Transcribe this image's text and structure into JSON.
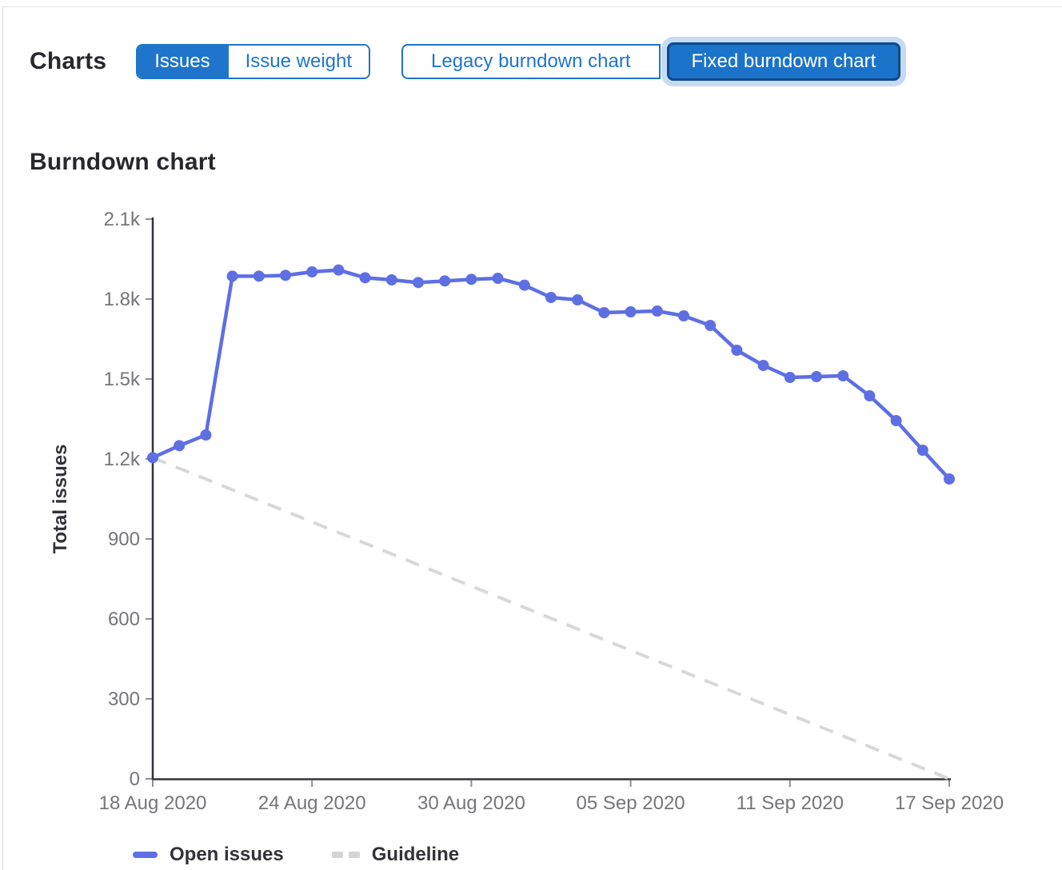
{
  "controls": {
    "charts_label": "Charts",
    "metric_toggle": {
      "items": [
        {
          "label": "Issues",
          "active": true
        },
        {
          "label": "Issue weight",
          "active": false
        }
      ]
    },
    "type_toggle": {
      "items": [
        {
          "label": "Legacy burndown chart",
          "active": false
        },
        {
          "label": "Fixed burndown chart",
          "active": true,
          "focused": true
        }
      ]
    }
  },
  "section": {
    "title": "Burndown chart"
  },
  "chart_data": {
    "type": "line",
    "title": "Burndown chart",
    "xlabel": "",
    "ylabel": "Total issues",
    "ylim": [
      0,
      2100
    ],
    "y_ticks": [
      0,
      300,
      600,
      900,
      1200,
      1500,
      1800,
      2100
    ],
    "y_tick_labels": [
      "0",
      "300",
      "600",
      "900",
      "1.2k",
      "1.5k",
      "1.8k",
      "2.1k"
    ],
    "x_tick_days": [
      0,
      6,
      12,
      18,
      24,
      30
    ],
    "x_tick_labels": [
      "18 Aug 2020",
      "24 Aug 2020",
      "30 Aug 2020",
      "05 Sep 2020",
      "11 Sep 2020",
      "17 Sep 2020"
    ],
    "x_range_days": 30,
    "grid": false,
    "legend_position": "bottom-left",
    "series": [
      {
        "name": "Open issues",
        "style": "solid",
        "color": "#5e6fe4",
        "marker": "circle",
        "values": [
          1205,
          1250,
          1290,
          1886,
          1886,
          1889,
          1902,
          1909,
          1880,
          1872,
          1862,
          1868,
          1874,
          1878,
          1852,
          1806,
          1797,
          1749,
          1752,
          1755,
          1737,
          1701,
          1608,
          1551,
          1506,
          1509,
          1512,
          1437,
          1344,
          1233,
          1125
        ]
      },
      {
        "name": "Guideline",
        "style": "dashed",
        "color": "#d8d8d8",
        "marker": "none",
        "points": [
          [
            0,
            1205
          ],
          [
            30,
            0
          ]
        ]
      }
    ],
    "legend": [
      {
        "label": "Open issues"
      },
      {
        "label": "Guideline"
      }
    ],
    "axis_color": "#333238",
    "tick_color": "#8f8f8f",
    "tick_label_color": "#75757a"
  }
}
